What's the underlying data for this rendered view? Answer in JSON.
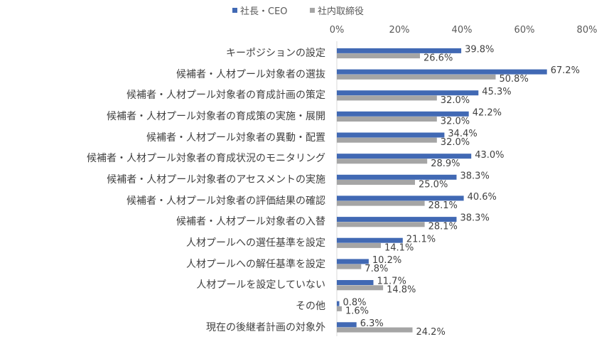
{
  "chart_data": {
    "type": "bar",
    "orientation": "horizontal",
    "categories": [
      "キーポジションの設定",
      "候補者・人材プール対象者の選抜",
      "候補者・人材プール対象者の育成計画の策定",
      "候補者・人材プール対象者の育成策の実施・展開",
      "候補者・人材プール対象者の異動・配置",
      "候補者・人材プール対象者の育成状況のモニタリング",
      "候補者・人材プール対象者のアセスメントの実施",
      "候補者・人材プール対象者の評価結果の確認",
      "候補者・人材プール対象者の入替",
      "人材プールへの選任基準を設定",
      "人材プールへの解任基準を設定",
      "人材プールを設定していない",
      "その他",
      "現在の後継者計画の対象外"
    ],
    "series": [
      {
        "name": "社長・CEO",
        "color": "#4169B4",
        "values": [
          39.8,
          67.2,
          45.3,
          42.2,
          34.4,
          43.0,
          38.3,
          40.6,
          38.3,
          21.1,
          10.2,
          11.7,
          0.8,
          6.3
        ],
        "labels": [
          "39.8%",
          "67.2%",
          "45.3%",
          "42.2%",
          "34.4%",
          "43.0%",
          "38.3%",
          "40.6%",
          "38.3%",
          "21.1%",
          "10.2%",
          "11.7%",
          "0.8%",
          "6.3%"
        ]
      },
      {
        "name": "社内取締役",
        "color": "#A5A5A5",
        "values": [
          26.6,
          50.8,
          32.0,
          32.0,
          32.0,
          28.9,
          25.0,
          28.1,
          28.1,
          14.1,
          7.8,
          14.8,
          1.6,
          24.2
        ],
        "labels": [
          "26.6%",
          "50.8%",
          "32.0%",
          "32.0%",
          "32.0%",
          "28.9%",
          "25.0%",
          "28.1%",
          "28.1%",
          "14.1%",
          "7.8%",
          "14.8%",
          "1.6%",
          "24.2%"
        ]
      }
    ],
    "xlim": [
      0,
      80
    ],
    "x_ticks": [
      "0%",
      "20%",
      "40%",
      "60%",
      "80%"
    ],
    "x_tick_values": [
      0,
      20,
      40,
      60,
      80
    ],
    "axis_position": "top",
    "legend_position": "top",
    "grid": false,
    "title": "",
    "xlabel": "",
    "ylabel": ""
  }
}
